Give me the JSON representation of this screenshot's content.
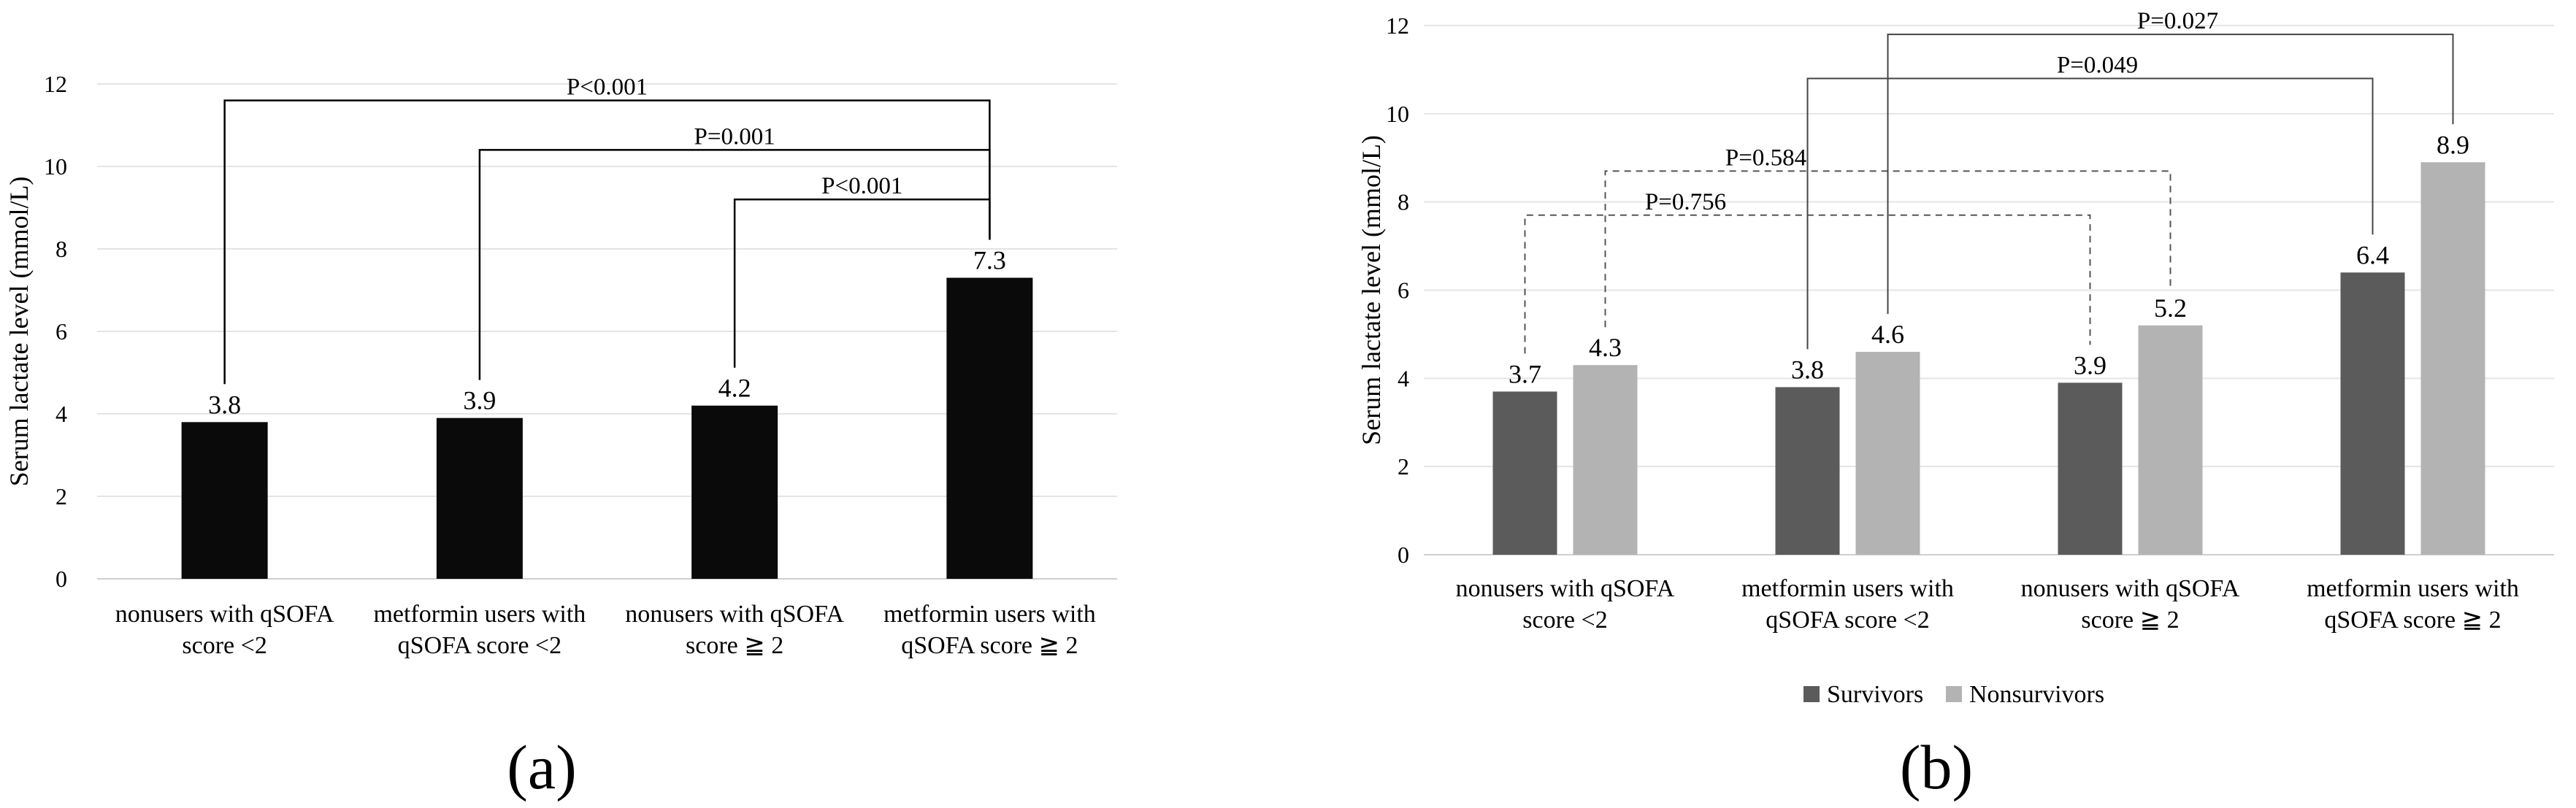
{
  "chart_data": [
    {
      "panel_label": "(a)",
      "type": "bar",
      "ylabel": "Serum lactate level (mmol/L)",
      "ylim": [
        0,
        12
      ],
      "yticks": [
        0,
        2,
        4,
        6,
        8,
        10,
        12
      ],
      "grid": true,
      "categories": [
        [
          "nonusers with qSOFA",
          "score <2"
        ],
        [
          "metformin users with",
          "qSOFA score <2"
        ],
        [
          "nonusers with qSOFA",
          "score ≧ 2"
        ],
        [
          "metformin users with",
          "qSOFA score ≧ 2"
        ]
      ],
      "values": [
        3.8,
        3.9,
        4.2,
        7.3
      ],
      "data_labels": [
        "3.8",
        "3.9",
        "4.2",
        "7.3"
      ],
      "color": "#0a0a0a",
      "comparisons": [
        {
          "from": 0,
          "to": 3,
          "label": "P<0.001",
          "y": 11.6
        },
        {
          "from": 1,
          "to": 3,
          "label": "P=0.001",
          "y": 10.4
        },
        {
          "from": 2,
          "to": 3,
          "label": "P<0.001",
          "y": 9.2
        }
      ]
    },
    {
      "panel_label": "(b)",
      "type": "bar",
      "ylabel": "Serum lactate level (mmol/L)",
      "ylim": [
        0,
        12
      ],
      "yticks": [
        0,
        2,
        4,
        6,
        8,
        10,
        12
      ],
      "grid": true,
      "categories": [
        [
          "nonusers with qSOFA",
          "score <2"
        ],
        [
          "metformin users with",
          "qSOFA score <2"
        ],
        [
          "nonusers with qSOFA",
          "score ≧ 2"
        ],
        [
          "metformin users with",
          "qSOFA score ≧ 2"
        ]
      ],
      "series": [
        {
          "name": "Survivors",
          "values": [
            3.7,
            3.8,
            3.9,
            6.4
          ],
          "labels": [
            "3.7",
            "3.8",
            "3.9",
            "6.4"
          ],
          "color": "#5b5b5b"
        },
        {
          "name": "Nonsurvivors",
          "values": [
            4.3,
            4.6,
            5.2,
            8.9
          ],
          "labels": [
            "4.3",
            "4.6",
            "5.2",
            "8.9"
          ],
          "color": "#b3b3b3"
        }
      ],
      "legend": "bottom",
      "comparisons": [
        {
          "from": [
            0,
            0
          ],
          "to": [
            2,
            0
          ],
          "label": "P=0.756",
          "y": 7.7,
          "style": "dashed"
        },
        {
          "from": [
            0,
            1
          ],
          "to": [
            2,
            1
          ],
          "label": "P=0.584",
          "y": 8.7,
          "style": "dashed"
        },
        {
          "from": [
            1,
            0
          ],
          "to": [
            3,
            0
          ],
          "label": "P=0.049",
          "y": 10.8,
          "style": "solid"
        },
        {
          "from": [
            1,
            1
          ],
          "to": [
            3,
            1
          ],
          "label": "P=0.027",
          "y": 11.8,
          "style": "solid"
        }
      ]
    }
  ]
}
